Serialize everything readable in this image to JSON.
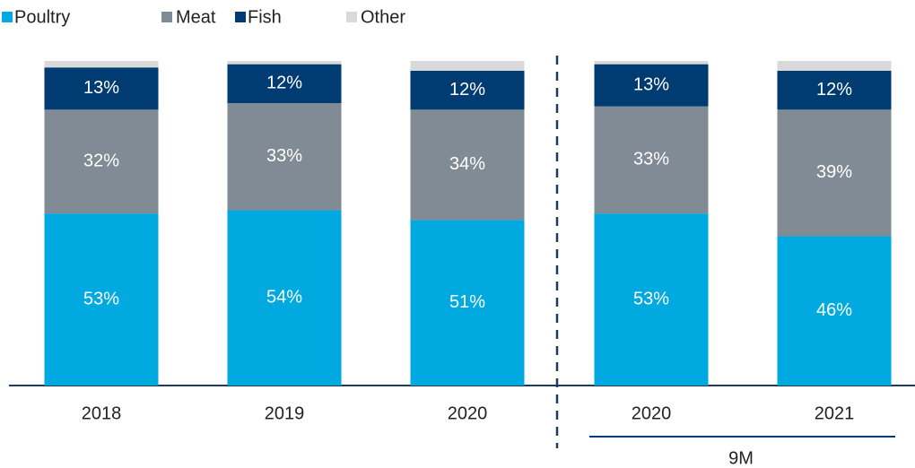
{
  "chart_data": {
    "type": "stacked_bar",
    "categories": [
      "2018",
      "2019",
      "2020",
      "2020",
      "2021"
    ],
    "series": [
      {
        "name": "Poultry",
        "color": "#00a9e0",
        "values": [
          53,
          54,
          51,
          53,
          46
        ],
        "value_labels": [
          "53%",
          "54%",
          "51%",
          "53%",
          "46%"
        ]
      },
      {
        "name": "Meat",
        "color": "#808b96",
        "values": [
          32,
          33,
          34,
          33,
          39
        ],
        "value_labels": [
          "32%",
          "33%",
          "34%",
          "33%",
          "39%"
        ]
      },
      {
        "name": "Fish",
        "color": "#003b71",
        "values": [
          13,
          12,
          12,
          13,
          12
        ],
        "value_labels": [
          "13%",
          "12%",
          "12%",
          "13%",
          "12%"
        ]
      },
      {
        "name": "Other",
        "color": "#d9d9d9",
        "values": [
          2,
          1,
          3,
          1,
          3
        ]
      }
    ],
    "ylim": [
      0,
      100
    ],
    "annotation": "9M"
  }
}
